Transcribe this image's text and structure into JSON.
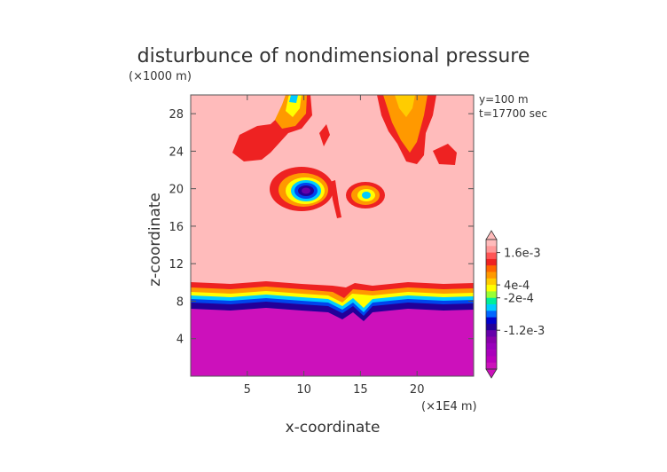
{
  "chart_data": {
    "type": "heatmap",
    "title": "disturbunce of nondimensional pressure",
    "xlabel": "x-coordinate",
    "ylabel": "z-coordinate",
    "x_unit": "(×1E4 m)",
    "y_unit": "(×1000 m)",
    "annotations": [
      "y=100 m",
      "t=17700 sec"
    ],
    "xlim": [
      0,
      25
    ],
    "ylim": [
      0,
      30
    ],
    "x_ticks": [
      "5",
      "10",
      "15",
      "20"
    ],
    "y_ticks": [
      "4",
      "8",
      "12",
      "16",
      "20",
      "24",
      "28"
    ],
    "x_tick_values": [
      5,
      10,
      15,
      20
    ],
    "y_tick_values": [
      4,
      8,
      12,
      16,
      20,
      24,
      28
    ],
    "colorbar": {
      "labels": [
        "1.6e-3",
        "4e-4",
        "-2e-4",
        "-1.2e-3"
      ],
      "colors": [
        "#ffbbbb",
        "#ff9999",
        "#ff5555",
        "#ee2222",
        "#ff6600",
        "#ff9900",
        "#ffcc00",
        "#ffff00",
        "#99ff33",
        "#00ee99",
        "#00ccff",
        "#0066ff",
        "#0000cc",
        "#220099",
        "#6600aa",
        "#8800aa",
        "#9900bb",
        "#aa00bb",
        "#bb00bb",
        "#cc11bb"
      ]
    },
    "background_value": "0 to 4e-4 (light pink)",
    "lower_layer": {
      "z_top": 8.5,
      "description": "strong negative disturbance (magenta) below ~8 km"
    },
    "features": [
      {
        "name": "negative-core-1",
        "x": 10.0,
        "z": 19.5,
        "min": "-1.2e-3"
      },
      {
        "name": "negative-core-2",
        "x": 15.5,
        "z": 19.0,
        "min": "-2e-4"
      },
      {
        "name": "upper-left-plume",
        "x": 9.0,
        "z": 28.5
      },
      {
        "name": "upper-right-plume",
        "x": 19.0,
        "z": 27.0
      }
    ]
  }
}
